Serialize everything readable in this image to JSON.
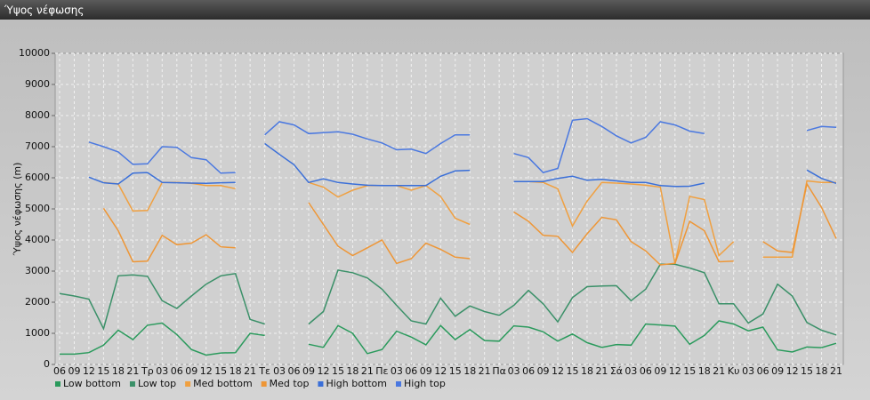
{
  "chart_data": {
    "type": "line",
    "title": "Ύψος νέφωσης",
    "y_label": "Ύψος νέφωσης (m)",
    "categories": [
      "06",
      "09",
      "12",
      "15",
      "18",
      "21",
      "Τρ",
      "03",
      "06",
      "09",
      "12",
      "15",
      "18",
      "21",
      "Τε",
      "03",
      "06",
      "09",
      "12",
      "15",
      "18",
      "21",
      "Πε",
      "03",
      "06",
      "09",
      "12",
      "15",
      "18",
      "21",
      "Πα",
      "03",
      "06",
      "09",
      "12",
      "15",
      "18",
      "21",
      "Σά",
      "03",
      "06",
      "09",
      "12",
      "15",
      "18",
      "21",
      "Κυ",
      "03",
      "06",
      "09",
      "12",
      "15",
      "18",
      "21"
    ],
    "ylim": [
      0,
      10000
    ],
    "yticks": [
      0,
      1000,
      2000,
      3000,
      4000,
      5000,
      6000,
      7000,
      8000,
      9000,
      10000
    ],
    "grid": true,
    "legend": "bottom",
    "series": [
      {
        "name": "Low bottom",
        "color": "#2a9a5c",
        "values": [
          330,
          330,
          380,
          620,
          1100,
          800,
          1260,
          1330,
          960,
          480,
          300,
          370,
          380,
          1000,
          930,
          null,
          null,
          650,
          550,
          1250,
          1000,
          350,
          480,
          1070,
          880,
          630,
          1250,
          800,
          1120,
          770,
          750,
          1240,
          1200,
          1050,
          750,
          980,
          700,
          550,
          640,
          620,
          1300,
          1270,
          1230,
          650,
          930,
          1400,
          1300,
          1080,
          1200,
          470,
          400,
          560,
          540,
          680
        ]
      },
      {
        "name": "Low top",
        "color": "#3a9068",
        "values": [
          2280,
          2200,
          2100,
          1150,
          2850,
          2880,
          2830,
          2050,
          1800,
          2200,
          2580,
          2850,
          2920,
          1450,
          1300,
          null,
          null,
          1300,
          1700,
          3030,
          2950,
          2780,
          2420,
          1900,
          1400,
          1300,
          2130,
          1550,
          1880,
          1700,
          1580,
          1900,
          2380,
          1950,
          1370,
          2150,
          2500,
          2520,
          2530,
          2050,
          2420,
          3220,
          3220,
          3100,
          2950,
          1950,
          1950,
          1330,
          1620,
          2580,
          2200,
          1350,
          1100,
          950
        ]
      },
      {
        "name": "Med bottom",
        "color": "#f0a040",
        "values": [
          null,
          null,
          null,
          5850,
          5800,
          4930,
          4950,
          5850,
          5850,
          5820,
          5750,
          5750,
          5650,
          null,
          null,
          null,
          null,
          5850,
          5700,
          5380,
          5600,
          5750,
          5750,
          5750,
          5600,
          5750,
          5400,
          4700,
          4500,
          null,
          null,
          5880,
          5880,
          5850,
          5650,
          4450,
          5250,
          5850,
          5830,
          5800,
          5760,
          5700,
          3250,
          5400,
          5300,
          3500,
          3950,
          null,
          3450,
          3450,
          3450,
          5900,
          5850,
          5850
        ]
      },
      {
        "name": "Med top",
        "color": "#ee9636",
        "values": [
          null,
          null,
          null,
          5020,
          4300,
          3300,
          3320,
          4150,
          3850,
          3900,
          4170,
          3780,
          3750,
          null,
          null,
          null,
          null,
          5200,
          4500,
          3800,
          3500,
          3750,
          4000,
          3250,
          3400,
          3900,
          3700,
          3450,
          3400,
          null,
          null,
          4900,
          4600,
          4150,
          4120,
          3600,
          4200,
          4730,
          4650,
          3950,
          3650,
          3200,
          3250,
          4600,
          4300,
          3300,
          3320,
          null,
          3950,
          3650,
          3600,
          5800,
          5050,
          4050
        ]
      },
      {
        "name": "High bottom",
        "color": "#3a6fd8",
        "values": [
          null,
          null,
          6020,
          5840,
          5800,
          6150,
          6170,
          5850,
          5840,
          5830,
          5820,
          5840,
          5850,
          null,
          7100,
          6750,
          6420,
          5850,
          5970,
          5850,
          5800,
          5760,
          5750,
          5750,
          5750,
          5750,
          6050,
          6220,
          6240,
          null,
          null,
          5880,
          5880,
          5880,
          5980,
          6050,
          5920,
          5950,
          5900,
          5850,
          5850,
          5750,
          5720,
          5730,
          5830,
          null,
          null,
          null,
          null,
          null,
          null,
          6250,
          5980,
          5820
        ]
      },
      {
        "name": "High top",
        "color": "#4a78e0",
        "values": [
          null,
          null,
          7150,
          7000,
          6830,
          6430,
          6450,
          7000,
          6980,
          6650,
          6580,
          6150,
          6170,
          null,
          7380,
          7800,
          7700,
          7420,
          7450,
          7480,
          7400,
          7250,
          7120,
          6900,
          6920,
          6780,
          7100,
          7380,
          7380,
          null,
          null,
          6780,
          6650,
          6170,
          6300,
          7850,
          7900,
          7650,
          7350,
          7120,
          7300,
          7800,
          7700,
          7500,
          7420,
          null,
          null,
          null,
          null,
          null,
          null,
          7520,
          7650,
          7620
        ]
      }
    ]
  }
}
